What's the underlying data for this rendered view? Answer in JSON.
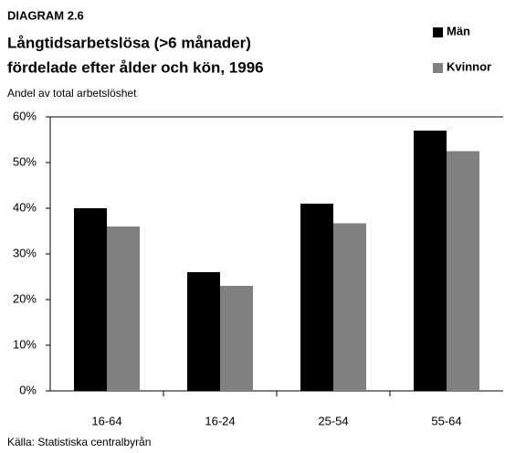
{
  "chart_data": {
    "type": "bar",
    "label": "DIAGRAM 2.6",
    "title": [
      "Långtidsarbetslösa (>6 månader)",
      "fördelade efter ålder och kön, 1996"
    ],
    "subtitle": "Andel av total arbetslöshet",
    "source": "Källa: Statistiska centralbyrån",
    "categories": [
      "16-64",
      "16-24",
      "25-54",
      "55-64"
    ],
    "series": [
      {
        "name": "Män",
        "color": "#000000",
        "values": [
          40,
          26,
          41,
          57
        ]
      },
      {
        "name": "Kvinnor",
        "color": "#808080",
        "values": [
          36,
          23,
          36.7,
          52.5
        ]
      }
    ],
    "ylim": [
      0,
      60
    ],
    "yticks": [
      {
        "value": 0,
        "label": "0%"
      },
      {
        "value": 10,
        "label": "10%"
      },
      {
        "value": 20,
        "label": "20%"
      },
      {
        "value": 30,
        "label": "30%"
      },
      {
        "value": 40,
        "label": "40%"
      },
      {
        "value": 50,
        "label": "50%"
      },
      {
        "value": 60,
        "label": "60%"
      }
    ],
    "grid": false,
    "legend": "top-right"
  }
}
